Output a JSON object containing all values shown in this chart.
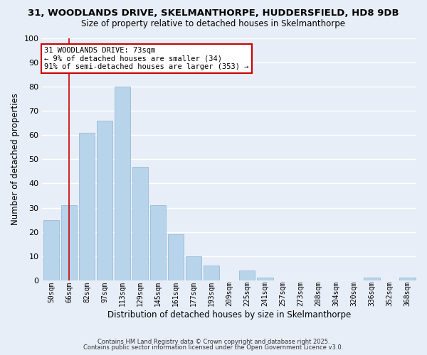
{
  "title1": "31, WOODLANDS DRIVE, SKELMANTHORPE, HUDDERSFIELD, HD8 9DB",
  "title2": "Size of property relative to detached houses in Skelmanthorpe",
  "xlabel": "Distribution of detached houses by size in Skelmanthorpe",
  "ylabel": "Number of detached properties",
  "categories": [
    "50sqm",
    "66sqm",
    "82sqm",
    "97sqm",
    "113sqm",
    "129sqm",
    "145sqm",
    "161sqm",
    "177sqm",
    "193sqm",
    "209sqm",
    "225sqm",
    "241sqm",
    "257sqm",
    "273sqm",
    "288sqm",
    "304sqm",
    "320sqm",
    "336sqm",
    "352sqm",
    "368sqm"
  ],
  "values": [
    25,
    31,
    61,
    66,
    80,
    47,
    31,
    19,
    10,
    6,
    0,
    4,
    1,
    0,
    0,
    0,
    0,
    0,
    1,
    0,
    1
  ],
  "bar_color": "#b8d4ea",
  "bar_edge_color": "#96bcd8",
  "ylim": [
    0,
    100
  ],
  "yticks": [
    0,
    10,
    20,
    30,
    40,
    50,
    60,
    70,
    80,
    90,
    100
  ],
  "vline_x": 1.0,
  "vline_color": "#cc0000",
  "annotation_title": "31 WOODLANDS DRIVE: 73sqm",
  "annotation_line1": "← 9% of detached houses are smaller (34)",
  "annotation_line2": "91% of semi-detached houses are larger (353) →",
  "annotation_box_color": "#ffffff",
  "annotation_box_edge": "#cc0000",
  "footer1": "Contains HM Land Registry data © Crown copyright and database right 2025.",
  "footer2": "Contains public sector information licensed under the Open Government Licence v3.0.",
  "background_color": "#e8eef8",
  "grid_color": "#ffffff",
  "title_fontsize": 9.5,
  "subtitle_fontsize": 8.5,
  "ann_fontsize": 7.5,
  "footer_fontsize": 6.0
}
